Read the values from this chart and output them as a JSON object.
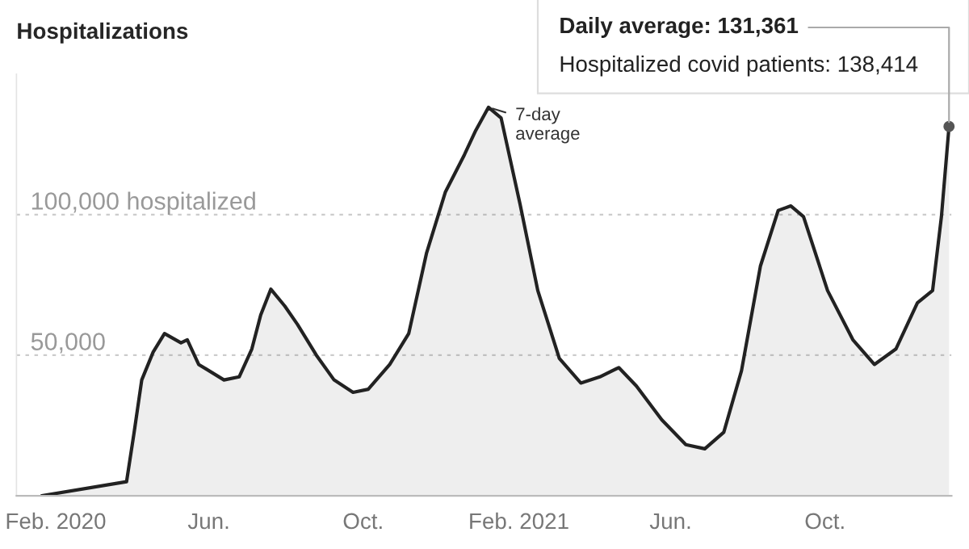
{
  "chart_data": {
    "type": "area",
    "title": "Hospitalizations",
    "x": [
      "2020-01-21",
      "2020-03-28",
      "2020-04-03",
      "2020-04-09",
      "2020-04-18",
      "2020-04-27",
      "2020-05-10",
      "2020-05-15",
      "2020-05-24",
      "2020-06-13",
      "2020-06-25",
      "2020-07-05",
      "2020-07-12",
      "2020-07-20",
      "2020-07-31",
      "2020-08-10",
      "2020-08-25",
      "2020-09-08",
      "2020-09-23",
      "2020-10-05",
      "2020-10-22",
      "2020-11-06",
      "2020-11-20",
      "2020-12-05",
      "2020-12-20",
      "2020-12-29",
      "2021-01-08",
      "2021-01-18",
      "2021-02-02",
      "2021-02-16",
      "2021-03-05",
      "2021-03-22",
      "2021-04-06",
      "2021-04-21",
      "2021-05-05",
      "2021-05-25",
      "2021-06-13",
      "2021-06-28",
      "2021-07-13",
      "2021-07-27",
      "2021-08-11",
      "2021-08-25",
      "2021-09-04",
      "2021-09-14",
      "2021-10-03",
      "2021-10-23",
      "2021-11-09",
      "2021-11-26",
      "2021-12-13",
      "2021-12-25",
      "2022-01-01",
      "2022-01-07"
    ],
    "series": [
      {
        "color": "#222222",
        "values": [
          0,
          5000,
          22600,
          41200,
          51100,
          57700,
          54400,
          55500,
          46700,
          41200,
          42300,
          52200,
          64300,
          73500,
          67500,
          61000,
          50000,
          41200,
          36800,
          37900,
          46700,
          57700,
          86200,
          108100,
          121300,
          130000,
          138200,
          134400,
          103700,
          73000,
          48900,
          40100,
          42300,
          45600,
          39000,
          27000,
          18200,
          16700,
          22600,
          44500,
          81800,
          101500,
          103100,
          99300,
          73000,
          55500,
          46700,
          52200,
          68600,
          73000,
          99300,
          131361
        ]
      }
    ],
    "xlim": [
      "2020-01-01",
      "2022-01-09"
    ],
    "xticks": [
      {
        "value": "2020-02-01",
        "label": "Feb. 2020"
      },
      {
        "value": "2020-06-01",
        "label": "Jun."
      },
      {
        "value": "2020-10-01",
        "label": "Oct."
      },
      {
        "value": "2021-02-01",
        "label": "Feb. 2021"
      },
      {
        "value": "2021-06-01",
        "label": "Jun."
      },
      {
        "value": "2021-10-01",
        "label": "Oct."
      }
    ],
    "ylim": [
      0,
      150000
    ],
    "yticks": [
      {
        "value": 50000,
        "label": "50,000"
      },
      {
        "value": 100000,
        "label": "100,000 hospitalized"
      }
    ],
    "grid": "y",
    "line_style": "solid",
    "annotations": [
      {
        "text": "7-day average",
        "x": "2021-01-08",
        "y": 138200
      },
      {
        "text": "Daily average: 131,361",
        "x": "2022-01-07",
        "y": 131361
      },
      "Hospitalized covid patients: 138,414"
    ]
  }
}
